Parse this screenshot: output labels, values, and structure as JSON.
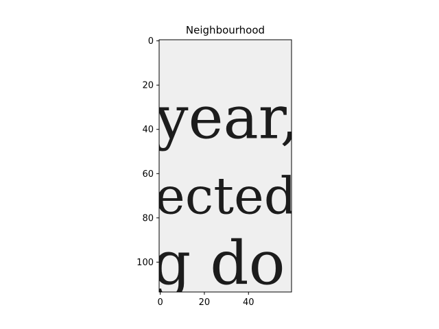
{
  "chart_data": {
    "type": "image",
    "title": "Neighbourhood",
    "xlabel": "",
    "ylabel": "",
    "xlim": [
      -0.5,
      59.5
    ],
    "ylim": [
      113.5,
      -0.5
    ],
    "xticks": [
      0,
      20,
      40
    ],
    "yticks": [
      0,
      20,
      40,
      60,
      80,
      100
    ],
    "image_text_rows": [
      {
        "text": "year,",
        "baseline_y": 44
      },
      {
        "text": "ected",
        "baseline_y": 78
      },
      {
        "text": "g do",
        "baseline_y": 110
      }
    ],
    "image_background": "#efefef",
    "ink_color": "#1c1c1c",
    "grid": false
  }
}
